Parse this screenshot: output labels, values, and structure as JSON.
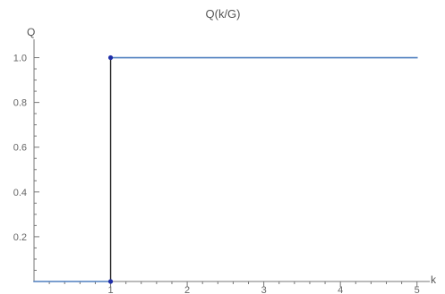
{
  "chart_data": {
    "type": "line",
    "title": "Q(k/G)",
    "xlabel": "k",
    "ylabel": "Q",
    "xlim": [
      0,
      5.05
    ],
    "ylim": [
      0,
      1.05
    ],
    "x_ticks": [
      1,
      2,
      3,
      4,
      5
    ],
    "x_tick_labels": [
      "1",
      "2",
      "3",
      "4",
      "5"
    ],
    "y_ticks": [
      0.2,
      0.4,
      0.6,
      0.8,
      1.0
    ],
    "y_tick_labels": [
      "0.2",
      "0.4",
      "0.6",
      "0.8",
      "1.0"
    ],
    "grid": false,
    "series": [
      {
        "x": [
          0,
          1
        ],
        "y": [
          0,
          0
        ],
        "color": "#4f7fbf"
      },
      {
        "x": [
          1,
          5
        ],
        "y": [
          1,
          1
        ],
        "color": "#4f7fbf"
      }
    ],
    "jump": {
      "x": 1,
      "y_from": 0,
      "y_to": 1,
      "color": "#222222"
    },
    "markers": [
      {
        "x": 1,
        "y": 0,
        "color": "#1f2ea8"
      },
      {
        "x": 1,
        "y": 1,
        "color": "#1f2ea8"
      }
    ],
    "axis_color": "#777777"
  }
}
